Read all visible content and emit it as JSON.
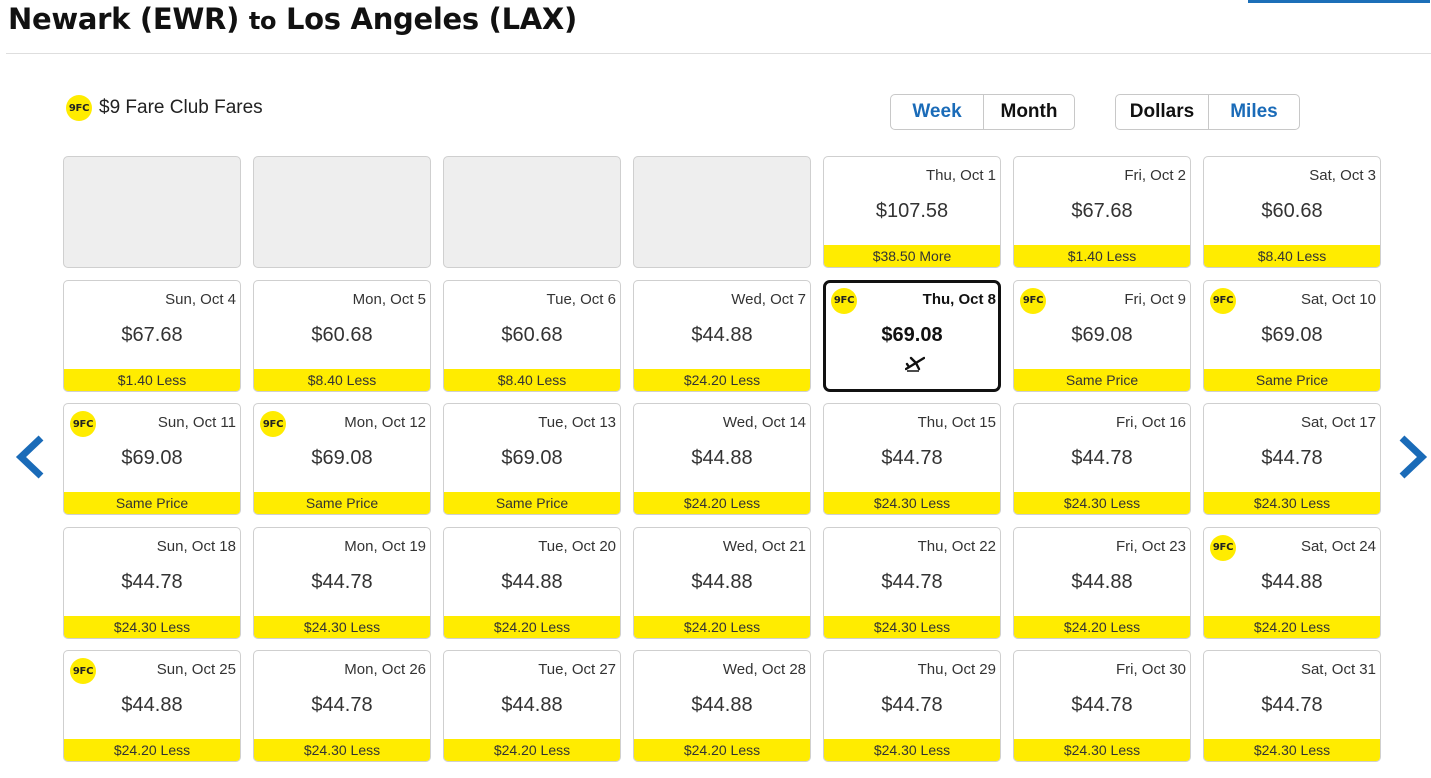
{
  "title": {
    "from": "Newark (EWR)",
    "to_word": "to",
    "dest": "Los Angeles (LAX)"
  },
  "legend": {
    "badge": "9FC",
    "label": "$9 Fare Club Fares"
  },
  "view_toggle": {
    "week": "Week",
    "month": "Month",
    "selected": "Month"
  },
  "currency_toggle": {
    "dollars": "Dollars",
    "miles": "Miles",
    "selected": "Dollars"
  },
  "colors": {
    "accent_yellow": "#ffec00",
    "link_blue": "#1a6bb8"
  },
  "icons": {
    "prev": "chevron-left-icon",
    "next": "chevron-right-icon",
    "flight": "airplane-icon"
  },
  "calendar": {
    "leading_blank_days": 4,
    "days": [
      {
        "date": "Thu, Oct 1",
        "price": "$107.58",
        "diff": "$38.50 More",
        "fc": false
      },
      {
        "date": "Fri, Oct 2",
        "price": "$67.68",
        "diff": "$1.40 Less",
        "fc": false
      },
      {
        "date": "Sat, Oct 3",
        "price": "$60.68",
        "diff": "$8.40 Less",
        "fc": false
      },
      {
        "date": "Sun, Oct 4",
        "price": "$67.68",
        "diff": "$1.40 Less",
        "fc": false
      },
      {
        "date": "Mon, Oct 5",
        "price": "$60.68",
        "diff": "$8.40 Less",
        "fc": false
      },
      {
        "date": "Tue, Oct 6",
        "price": "$60.68",
        "diff": "$8.40 Less",
        "fc": false
      },
      {
        "date": "Wed, Oct 7",
        "price": "$44.88",
        "diff": "$24.20 Less",
        "fc": false
      },
      {
        "date": "Thu, Oct 8",
        "price": "$69.08",
        "diff": "",
        "fc": true,
        "selected": true
      },
      {
        "date": "Fri, Oct 9",
        "price": "$69.08",
        "diff": "Same Price",
        "fc": true
      },
      {
        "date": "Sat, Oct 10",
        "price": "$69.08",
        "diff": "Same Price",
        "fc": true
      },
      {
        "date": "Sun, Oct 11",
        "price": "$69.08",
        "diff": "Same Price",
        "fc": true
      },
      {
        "date": "Mon, Oct 12",
        "price": "$69.08",
        "diff": "Same Price",
        "fc": true
      },
      {
        "date": "Tue, Oct 13",
        "price": "$69.08",
        "diff": "Same Price",
        "fc": false
      },
      {
        "date": "Wed, Oct 14",
        "price": "$44.88",
        "diff": "$24.20 Less",
        "fc": false
      },
      {
        "date": "Thu, Oct 15",
        "price": "$44.78",
        "diff": "$24.30 Less",
        "fc": false
      },
      {
        "date": "Fri, Oct 16",
        "price": "$44.78",
        "diff": "$24.30 Less",
        "fc": false
      },
      {
        "date": "Sat, Oct 17",
        "price": "$44.78",
        "diff": "$24.30 Less",
        "fc": false
      },
      {
        "date": "Sun, Oct 18",
        "price": "$44.78",
        "diff": "$24.30 Less",
        "fc": false
      },
      {
        "date": "Mon, Oct 19",
        "price": "$44.78",
        "diff": "$24.30 Less",
        "fc": false
      },
      {
        "date": "Tue, Oct 20",
        "price": "$44.88",
        "diff": "$24.20 Less",
        "fc": false
      },
      {
        "date": "Wed, Oct 21",
        "price": "$44.88",
        "diff": "$24.20 Less",
        "fc": false
      },
      {
        "date": "Thu, Oct 22",
        "price": "$44.78",
        "diff": "$24.30 Less",
        "fc": false
      },
      {
        "date": "Fri, Oct 23",
        "price": "$44.88",
        "diff": "$24.20 Less",
        "fc": false
      },
      {
        "date": "Sat, Oct 24",
        "price": "$44.88",
        "diff": "$24.20 Less",
        "fc": true
      },
      {
        "date": "Sun, Oct 25",
        "price": "$44.88",
        "diff": "$24.20 Less",
        "fc": true
      },
      {
        "date": "Mon, Oct 26",
        "price": "$44.78",
        "diff": "$24.30 Less",
        "fc": false
      },
      {
        "date": "Tue, Oct 27",
        "price": "$44.88",
        "diff": "$24.20 Less",
        "fc": false
      },
      {
        "date": "Wed, Oct 28",
        "price": "$44.88",
        "diff": "$24.20 Less",
        "fc": false
      },
      {
        "date": "Thu, Oct 29",
        "price": "$44.78",
        "diff": "$24.30 Less",
        "fc": false
      },
      {
        "date": "Fri, Oct 30",
        "price": "$44.78",
        "diff": "$24.30 Less",
        "fc": false
      },
      {
        "date": "Sat, Oct 31",
        "price": "$44.78",
        "diff": "$24.30 Less",
        "fc": false
      }
    ]
  }
}
